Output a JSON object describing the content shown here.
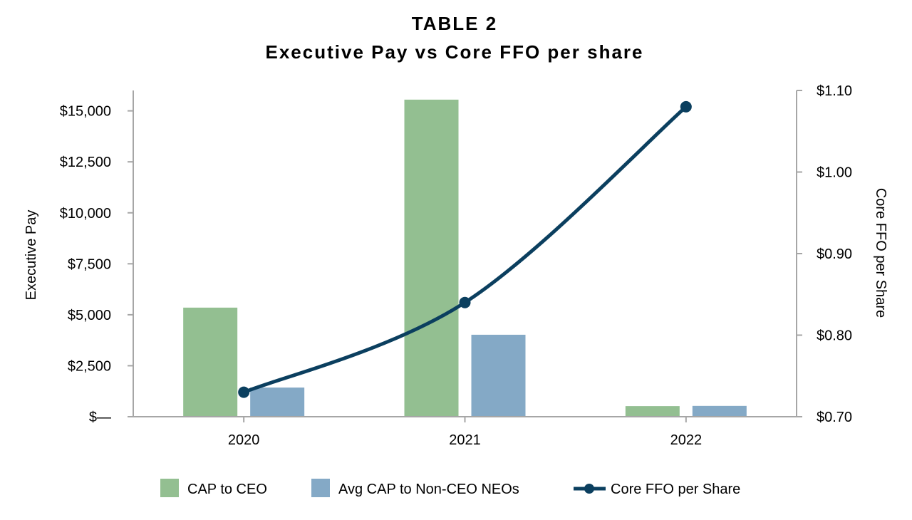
{
  "chart_data": {
    "type": "bar",
    "title": "TABLE 2",
    "subtitle": "Executive Pay vs Core FFO per share",
    "categories": [
      "2020",
      "2021",
      "2022"
    ],
    "series": [
      {
        "name": "CAP to CEO",
        "type": "bar",
        "axis": "left",
        "color": "#93bf91",
        "values": [
          5350,
          15550,
          520
        ]
      },
      {
        "name": "Avg CAP to Non-CEO NEOs",
        "type": "bar",
        "axis": "left",
        "color": "#84a9c6",
        "values": [
          1430,
          4020,
          530
        ]
      },
      {
        "name": "Core FFO per Share",
        "type": "line",
        "axis": "right",
        "color": "#0b3f5f",
        "values": [
          0.73,
          0.84,
          1.08
        ]
      }
    ],
    "ylabel": "Executive Pay",
    "ylim": [
      0,
      16000
    ],
    "yticks": [
      0,
      2500,
      5000,
      7500,
      10000,
      12500,
      15000
    ],
    "ytick_labels": [
      "$—",
      "$2,500",
      "$5,000",
      "$7,500",
      "$10,000",
      "$12,500",
      "$15,000"
    ],
    "y2label": "Core FFO per Share",
    "y2lim": [
      0.7,
      1.1
    ],
    "y2ticks": [
      0.7,
      0.8,
      0.9,
      1.0,
      1.1
    ],
    "y2tick_labels": [
      "$0.70",
      "$0.80",
      "$0.90",
      "$1.00",
      "$1.10"
    ],
    "legend": "bottom",
    "grid": false
  }
}
